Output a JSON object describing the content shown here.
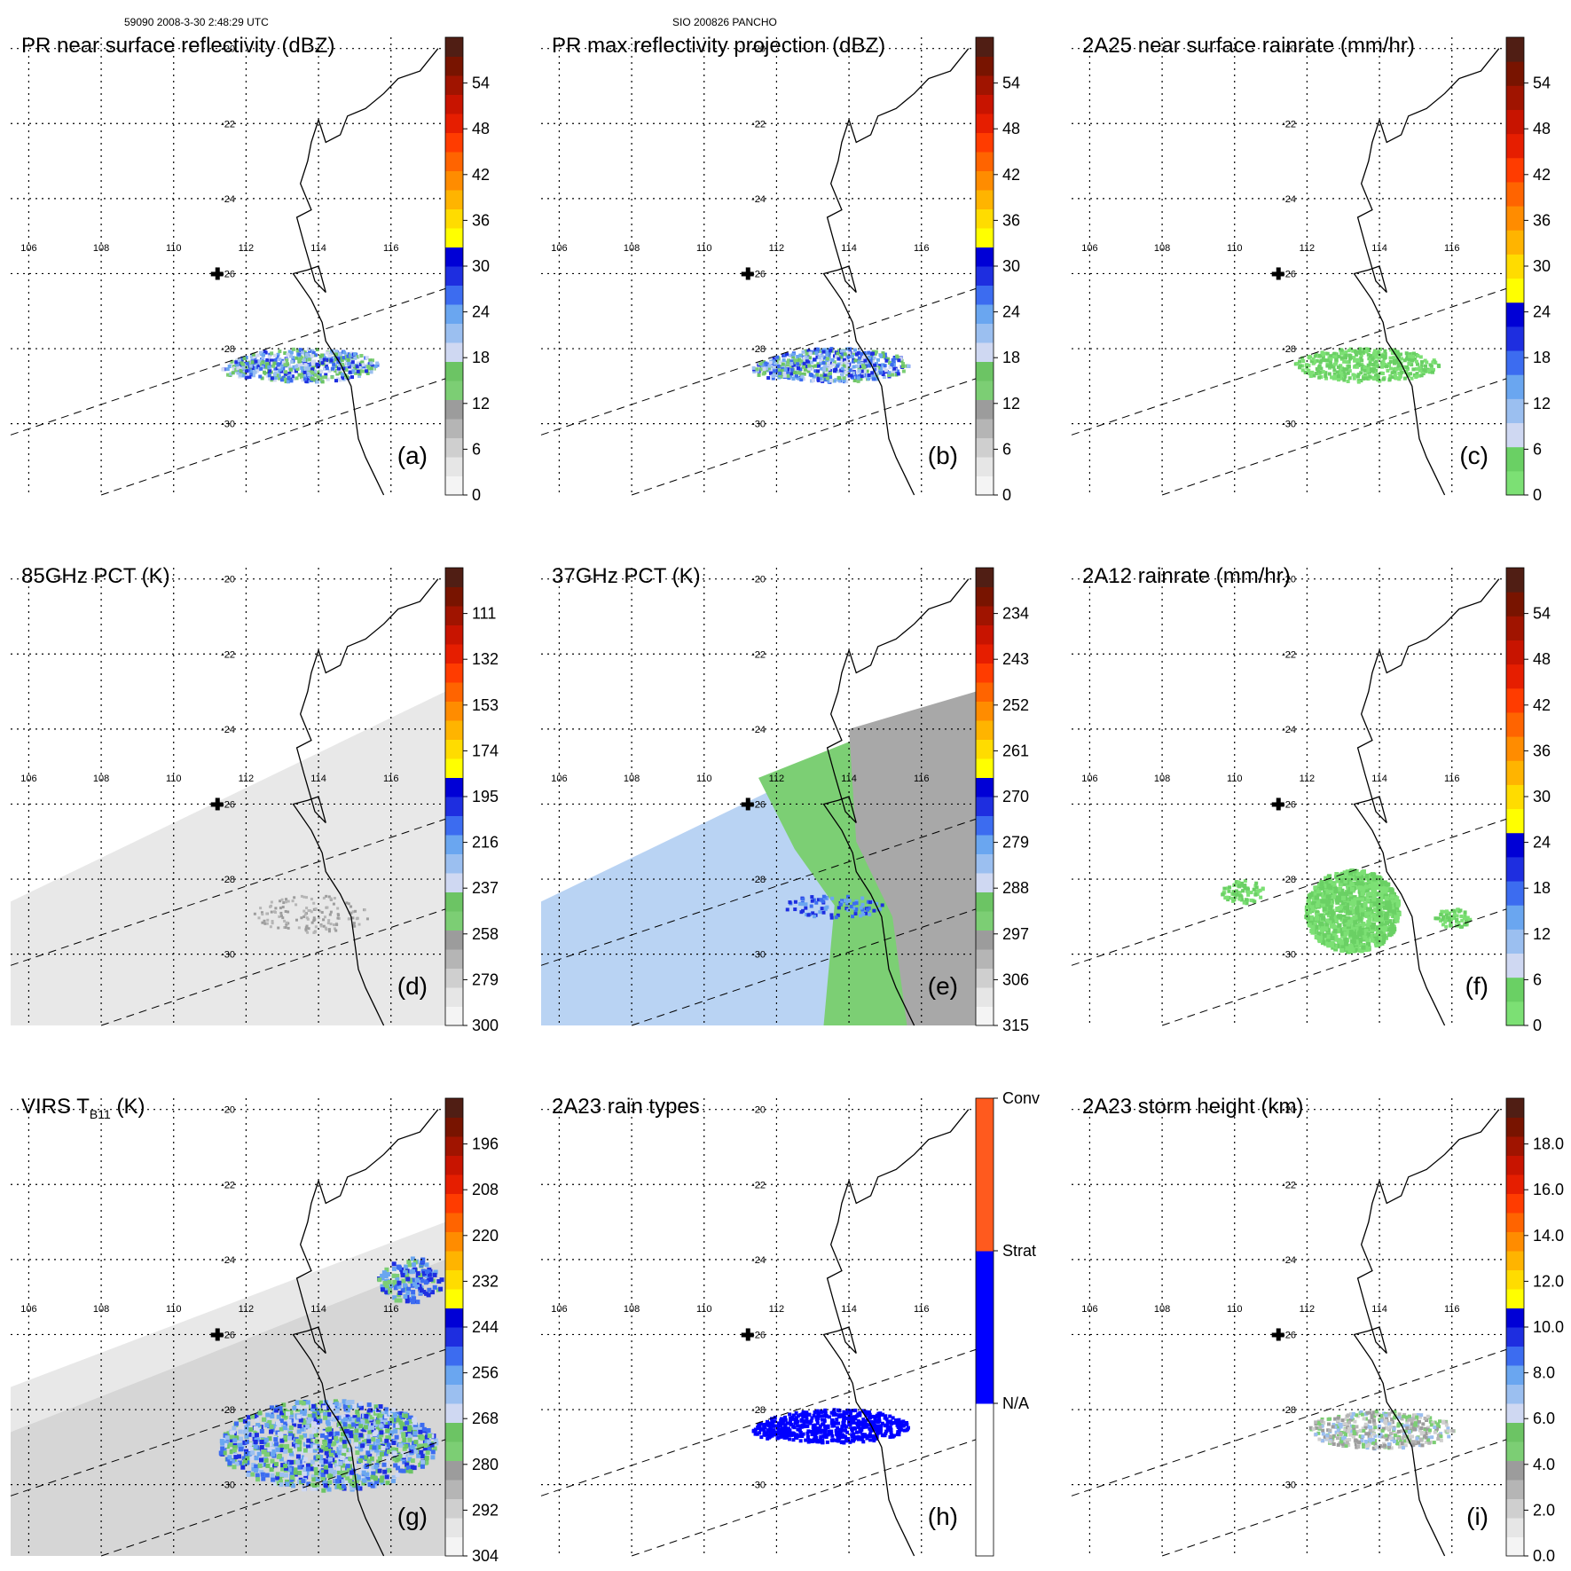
{
  "header": {
    "left": "59090 2008-3-30 2:48:29 UTC",
    "middle": "SIO 200826 PANCHO"
  },
  "map": {
    "lat_labels": [
      "-20",
      "-22",
      "-24",
      "-26",
      "-28",
      "-30"
    ],
    "lon_labels": [
      "106",
      "108",
      "110",
      "112",
      "114",
      "116"
    ],
    "storm_marker": {
      "lon": 111.2,
      "lat": -26.0
    }
  },
  "panels": [
    {
      "id": "a",
      "title": "PR near surface reflectivity (dBZ)",
      "label": "(a)",
      "colorbar": {
        "ticks": [
          "0",
          "6",
          "12",
          "18",
          "24",
          "30",
          "36",
          "42",
          "48",
          "54"
        ],
        "palette": "rain"
      },
      "field": "pr"
    },
    {
      "id": "b",
      "title": "PR max reflectivity projection (dBZ)",
      "label": "(b)",
      "colorbar": {
        "ticks": [
          "0",
          "6",
          "12",
          "18",
          "24",
          "30",
          "36",
          "42",
          "48",
          "54"
        ],
        "palette": "rain"
      },
      "field": "prmax"
    },
    {
      "id": "c",
      "title": "2A25 near surface rainrate (mm/hr)",
      "label": "(c)",
      "colorbar": {
        "ticks": [
          "0",
          "6",
          "12",
          "18",
          "24",
          "30",
          "36",
          "42",
          "48",
          "54"
        ],
        "palette": "rainrate"
      },
      "field": "rr"
    },
    {
      "id": "d",
      "title": "85GHz PCT (K)",
      "label": "(d)",
      "colorbar": {
        "ticks": [
          "300",
          "279",
          "258",
          "237",
          "216",
          "195",
          "174",
          "153",
          "132",
          "111"
        ],
        "palette": "rain"
      },
      "field": "pct85"
    },
    {
      "id": "e",
      "title": "37GHz PCT (K)",
      "label": "(e)",
      "colorbar": {
        "ticks": [
          "315",
          "306",
          "297",
          "288",
          "279",
          "270",
          "261",
          "252",
          "243",
          "234"
        ],
        "palette": "rain"
      },
      "field": "pct37"
    },
    {
      "id": "f",
      "title": "2A12 rainrate (mm/hr)",
      "label": "(f)",
      "colorbar": {
        "ticks": [
          "0",
          "6",
          "12",
          "18",
          "24",
          "30",
          "36",
          "42",
          "48",
          "54"
        ],
        "palette": "rainrate"
      },
      "field": "tmi"
    },
    {
      "id": "g",
      "title": "VIRS T",
      "title_sub": "B11",
      "title_suffix": " (K)",
      "label": "(g)",
      "colorbar": {
        "ticks": [
          "304",
          "292",
          "280",
          "268",
          "256",
          "244",
          "232",
          "220",
          "208",
          "196"
        ],
        "palette": "rain"
      },
      "field": "virs"
    },
    {
      "id": "h",
      "title": "2A23 rain types",
      "label": "(h)",
      "colorbar": {
        "ticks": [
          "N/A",
          "Strat",
          "Conv"
        ],
        "palette": "types"
      },
      "field": "types"
    },
    {
      "id": "i",
      "title": "2A23 storm height (km)",
      "label": "(i)",
      "colorbar": {
        "ticks": [
          "0.0",
          "2.0",
          "4.0",
          "6.0",
          "8.0",
          "10.0",
          "12.0",
          "14.0",
          "16.0",
          "18.0"
        ],
        "palette": "rain"
      },
      "field": "height"
    }
  ],
  "colors": {
    "rain": [
      "#f4f4f4",
      "#e6e6e6",
      "#cfcfcf",
      "#b5b5b5",
      "#9c9c9c",
      "#7cce74",
      "#6cc464",
      "#cfd8f2",
      "#9bbff0",
      "#6aa6f0",
      "#3c6cf0",
      "#1e2ee0",
      "#0000d6",
      "#ffff00",
      "#ffdc00",
      "#ffb400",
      "#ff8c00",
      "#ff6400",
      "#ff3c00",
      "#e61e00",
      "#c81400",
      "#a01400",
      "#781400",
      "#501e14"
    ],
    "rainrate": [
      "#7ce074",
      "#6ad064",
      "#cfd8f2",
      "#9bbff0",
      "#6aa6f0",
      "#3c6cf0",
      "#1e2ee0",
      "#0000d6",
      "#ffff00",
      "#ffdc00",
      "#ffb400",
      "#ff8c00",
      "#ff6400",
      "#ff3c00",
      "#e61e00",
      "#c81400",
      "#a01400",
      "#781400",
      "#501e14"
    ],
    "types": [
      "#ffffff",
      "#0000ff",
      "#ff5a1e"
    ]
  }
}
